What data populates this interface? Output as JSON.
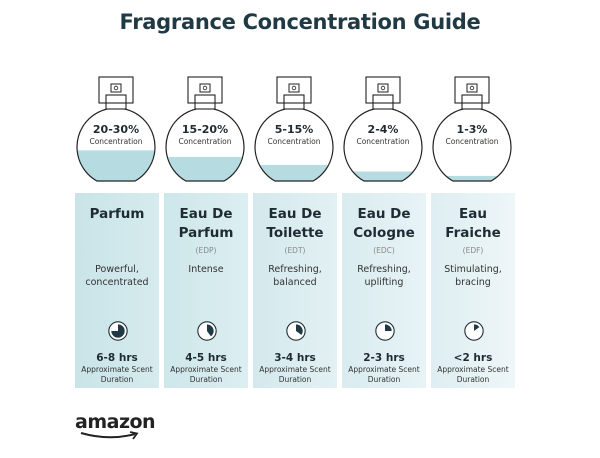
{
  "title": "Fragrance Concentration Guide",
  "colors": {
    "liquid": "#b6dce1",
    "panel_dark": "#c9e4e8",
    "panel_light": "#eef7f8",
    "ink": "#1f2b33"
  },
  "items": [
    {
      "concentration": "20-30%",
      "concentration_label": "Concentration",
      "fill_level": 0.42,
      "name": "Parfum",
      "abbr": "",
      "description": "Powerful, concentrated",
      "hours": "6-8 hrs",
      "duration_label": "Approximate Scent Duration",
      "clock_fraction": 0.75,
      "icon": "clock-pie-icon"
    },
    {
      "concentration": "15-20%",
      "concentration_label": "Concentration",
      "fill_level": 0.33,
      "name": "Eau De Parfum",
      "abbr": "(EDP)",
      "description": "Intense",
      "hours": "4-5 hrs",
      "duration_label": "Approximate Scent Duration",
      "clock_fraction": 0.4,
      "icon": "clock-pie-icon"
    },
    {
      "concentration": "5-15%",
      "concentration_label": "Concentration",
      "fill_level": 0.22,
      "name": "Eau De Toilette",
      "abbr": "(EDT)",
      "description": "Refreshing, balanced",
      "hours": "3-4 hrs",
      "duration_label": "Approximate Scent Duration",
      "clock_fraction": 0.35,
      "icon": "clock-pie-icon"
    },
    {
      "concentration": "2-4%",
      "concentration_label": "Concentration",
      "fill_level": 0.13,
      "name": "Eau De Cologne",
      "abbr": "(EDC)",
      "description": "Refreshing, uplifting",
      "hours": "2-3 hrs",
      "duration_label": "Approximate Scent Duration",
      "clock_fraction": 0.25,
      "icon": "clock-pie-icon"
    },
    {
      "concentration": "1-3%",
      "concentration_label": "Concentration",
      "fill_level": 0.07,
      "name": "Eau Fraiche",
      "abbr": "(EDF)",
      "description": "Stimulating, bracing",
      "hours": "<2 hrs",
      "duration_label": "Approximate Scent Duration",
      "clock_fraction": 0.15,
      "icon": "clock-pie-icon"
    }
  ],
  "brand": "amazon"
}
